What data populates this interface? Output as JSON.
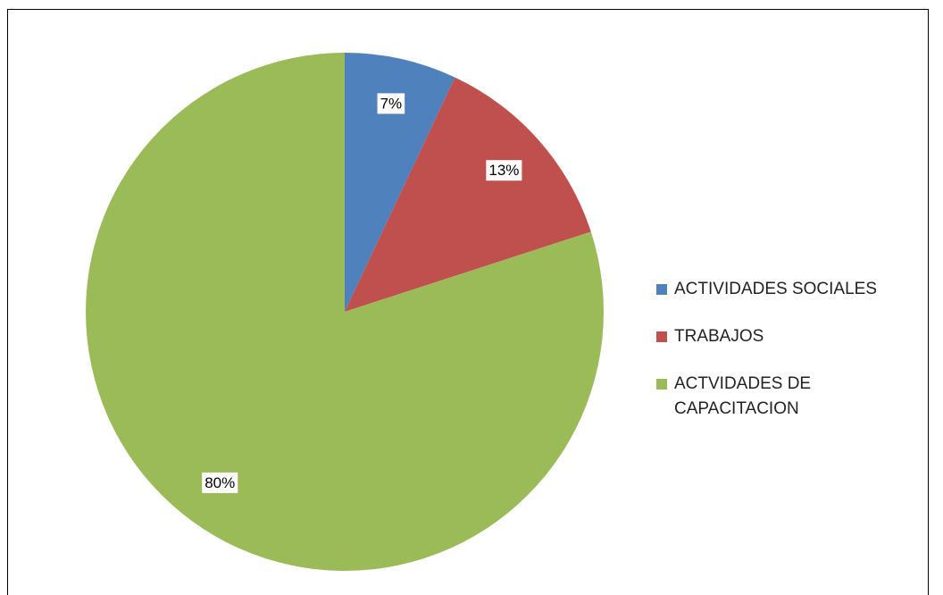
{
  "chart_data": {
    "type": "pie",
    "categories": [
      "ACTIVIDADES SOCIALES",
      "TRABAJOS",
      "ACTVIDADES DE CAPACITACION"
    ],
    "values": [
      7,
      13,
      80
    ],
    "value_labels": [
      "7%",
      "13%",
      "80%"
    ],
    "colors": [
      "#4f81bd",
      "#c0504d",
      "#9bbb59"
    ],
    "legend": "right"
  }
}
